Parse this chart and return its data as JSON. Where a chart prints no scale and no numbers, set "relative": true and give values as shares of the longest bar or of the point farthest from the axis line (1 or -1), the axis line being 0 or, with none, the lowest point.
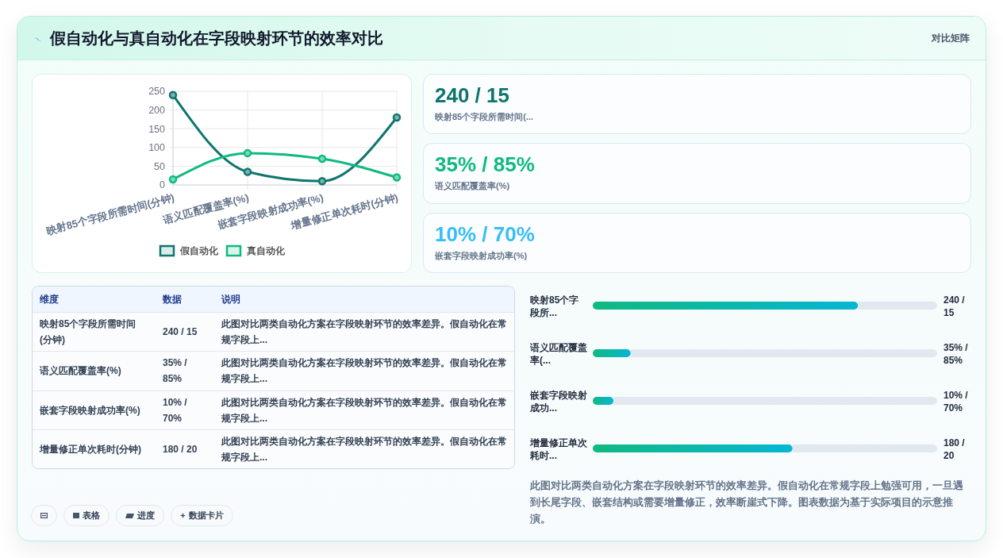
{
  "chart_data": [
    {
      "type": "other",
      "title": "假自动化与真自动化在字段映射环节的效率对比",
      "annotations": [
        "对比矩阵"
      ]
    },
    {
      "type": "line",
      "categories": [
        "映射85个字段所需时间(分钟)",
        "语义匹配覆盖率(%)",
        "嵌套字段映射成功率(%)",
        "增量修正单次耗时(分钟)"
      ],
      "series": [
        {
          "name": "假自动化",
          "color": "#0f766e",
          "values": [
            240,
            35,
            10,
            180
          ]
        },
        {
          "name": "真自动化",
          "color": "#10b981",
          "values": [
            15,
            85,
            70,
            20
          ]
        }
      ],
      "ylim": [
        0,
        250
      ],
      "yticks": [
        0,
        50,
        100,
        150,
        200,
        250
      ],
      "grid": true,
      "legend": "bottom",
      "marker": "circle"
    },
    {
      "type": "other",
      "annotations": [
        "240 / 15",
        "映射85个字段所需时间(...",
        "35% / 85%",
        "语义匹配覆盖率(%)",
        "10% / 70%",
        "嵌套字段映射成功率(%)"
      ]
    },
    {
      "type": "other",
      "annotations": [
        "维度",
        "数据",
        "说明",
        "映射85个字段所需时间(分钟)",
        "240 / 15",
        "此图对比两类自动化方案在字段映射环节的效率差异。假自动化在常规字段上...",
        "语义匹配覆盖率(%)",
        "35% / 85%",
        "此图对比两类自动化方案在字段映射环节的效率差异。假自动化在常规字段上...",
        "嵌套字段映射成功率(%)",
        "10% / 70%",
        "此图对比两类自动化方案在字段映射环节的效率差异。假自动化在常规字段上...",
        "增量修正单次耗时(分钟)",
        "180 / 20",
        "此图对比两类自动化方案在字段映射环节的效率差异。假自动化在常规字段上..."
      ]
    },
    {
      "type": "bar",
      "orientation": "horizontal",
      "stacked": true,
      "relative": true,
      "categories": [
        "映射85个字段所...",
        "语义匹配覆盖率(...",
        "嵌套字段映射成功...",
        "增量修正单次耗时..."
      ],
      "series": [
        {
          "color": "#10b981",
          "values": [
            0.77,
            0.11,
            0.06,
            0.58
          ]
        },
        {
          "color": "#e2e8f0",
          "values": [
            0.23,
            0.89,
            0.94,
            0.42
          ]
        }
      ],
      "annotations": [
        "240 / 15",
        "35% / 85%",
        "10% / 70%",
        "180 / 20",
        "此图对比两类自动化方案在字段映射环节的效率差异。假自动化在常规字段上勉强可用，一旦遇到长尾字段、嵌套结构或需要增量修正，效率断崖式下降。图表数据为基于实际项目的示意推演。"
      ]
    },
    {
      "type": "other",
      "annotations": [
        "表格",
        "进度",
        "数据卡片"
      ]
    }
  ]
}
